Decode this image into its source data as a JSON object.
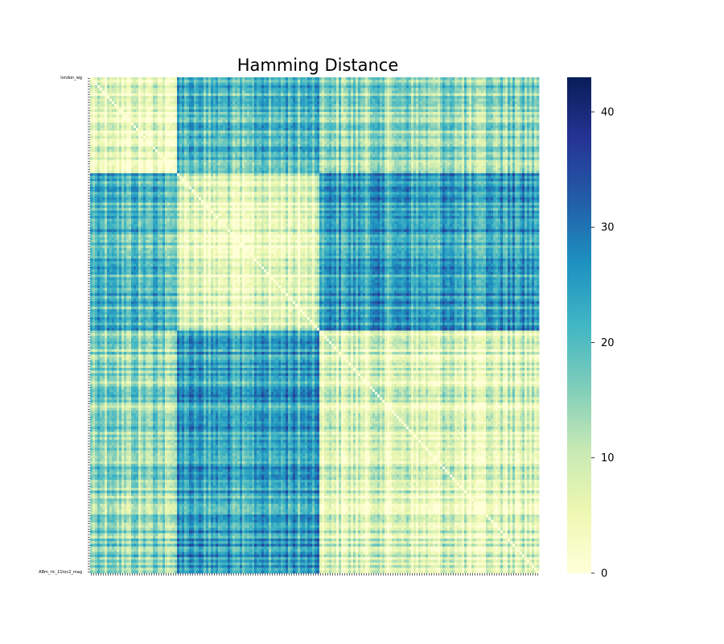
{
  "chart_data": {
    "type": "heatmap",
    "title": "Hamming Distance",
    "n_samples": 186,
    "first_label": "london_wg",
    "last_label": "ABm_rlc_11toc2_mag",
    "colorbar": {
      "min": 0,
      "max": 43,
      "ticks": [
        0,
        10,
        20,
        30,
        40
      ],
      "colormap": [
        "#ffffd9",
        "#edf8b1",
        "#c7e9b4",
        "#7fcdbb",
        "#41b6c4",
        "#1d91c0",
        "#225ea8",
        "#253494",
        "#081d58"
      ]
    },
    "blocks": [
      {
        "start": 0,
        "end": 36,
        "within_mean": 4
      },
      {
        "start": 36,
        "end": 95,
        "within_mean": 6
      },
      {
        "start": 95,
        "end": 186,
        "within_mean": 7
      }
    ],
    "between_block_means": [
      [
        4,
        20,
        14
      ],
      [
        20,
        6,
        24
      ],
      [
        14,
        24,
        7
      ]
    ]
  }
}
